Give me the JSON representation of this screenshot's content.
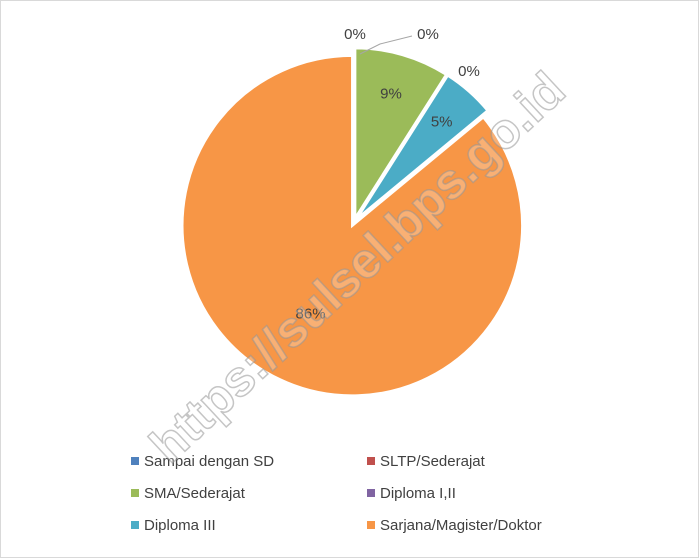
{
  "chart_data": {
    "type": "pie",
    "categories": [
      "Sampai dengan SD",
      "SLTP/Sederajat",
      "SMA/Sederajat",
      "Diploma I,II",
      "Diploma III",
      "Sarjana/Magister/Doktor"
    ],
    "values": [
      0,
      0,
      9,
      0,
      5,
      86
    ],
    "value_labels": [
      "0%",
      "0%",
      "9%",
      "0%",
      "5%",
      "86%"
    ],
    "colors": [
      "#4f81bd",
      "#c0504d",
      "#9bbb59",
      "#8064a2",
      "#4bacc6",
      "#f79646"
    ],
    "legend": "bottom",
    "watermark": "https://sulsel.bps.go.id"
  }
}
